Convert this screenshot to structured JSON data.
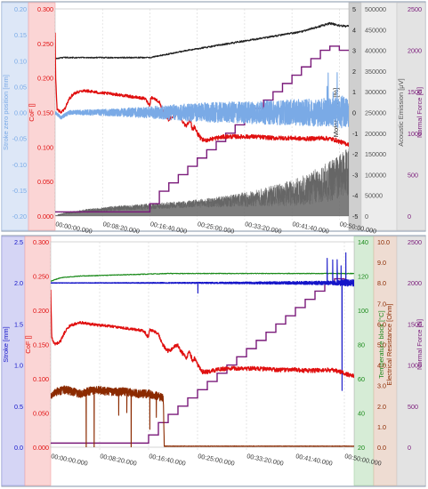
{
  "colors": {
    "stroke_zero": "#7aaae6",
    "cof": "#e01010",
    "motor": "#222222",
    "ae": "#666666",
    "force": "#7a1a7a",
    "stroke": "#1515c8",
    "temp": "#1a8a1a",
    "er": "#8b2a00"
  },
  "chart_data": [
    {
      "type": "line",
      "x_ticks": [
        "00:00:00.000",
        "00:08:20.000",
        "00:16:40.000",
        "00:25:00.000",
        "00:33:20.000",
        "00:41:40.000",
        "00:50:00.000"
      ],
      "x_seconds": [
        0,
        500,
        1000,
        1500,
        2000,
        2500,
        3000
      ],
      "axes": [
        {
          "label": "Stroke zero position [mm]",
          "ylim": [
            -0.2,
            0.2
          ],
          "ticks": [
            "-0.20",
            "-0.15",
            "-0.10",
            "-0.05",
            "0.00",
            "0.05",
            "0.10",
            "0.15",
            "0.20"
          ]
        },
        {
          "label": "CoF []",
          "ylim": [
            0,
            0.3
          ],
          "ticks": [
            "0.000",
            "0.050",
            "0.100",
            "0.150",
            "0.200",
            "0.250",
            "0.300"
          ]
        },
        {
          "label": "Motor Power [%]",
          "ylim": [
            -5,
            5
          ],
          "ticks": [
            "-5",
            "-4",
            "-3",
            "-2",
            "-1",
            "0",
            "1",
            "2",
            "3",
            "4",
            "5"
          ]
        },
        {
          "label": "Acoustic Emission [μV]",
          "ylim": [
            0,
            500000
          ],
          "ticks": [
            "0",
            "50000",
            "100000",
            "150000",
            "200000",
            "250000",
            "300000",
            "350000",
            "400000",
            "450000",
            "500000"
          ]
        },
        {
          "label": "Normal Force [N]",
          "ylim": [
            0,
            2500
          ],
          "ticks": [
            "0",
            "500",
            "1000",
            "1500",
            "2000",
            "2500"
          ]
        }
      ],
      "series": [
        {
          "axis": 0,
          "x": [
            0,
            60,
            150,
            300,
            500,
            700,
            900,
            1100,
            1300,
            1500,
            1800,
            2100,
            2400,
            2700,
            2900,
            3000,
            3100
          ],
          "y": [
            0.0,
            -0.01,
            0.0,
            0.0,
            0.0,
            0.0,
            0.0,
            0.0,
            0.0,
            0.0,
            0.0,
            0.0,
            0.0,
            0.0,
            0.0,
            0.0,
            0.0
          ],
          "noise": [
            0.003,
            0.003,
            0.004,
            0.005,
            0.006,
            0.008,
            0.01,
            0.013,
            0.016,
            0.018,
            0.02,
            0.022,
            0.024,
            0.026,
            0.028,
            0.03,
            0.03
          ]
        },
        {
          "axis": 1,
          "x": [
            0,
            5,
            20,
            60,
            100,
            150,
            200,
            300,
            400,
            500,
            600,
            700,
            800,
            950,
            1000,
            1010,
            1050,
            1100,
            1150,
            1200,
            1250,
            1300,
            1330,
            1360,
            1380,
            1420,
            1450,
            1470,
            1500,
            1550,
            1600,
            1700,
            1800,
            1900,
            2000,
            2100,
            2200,
            2300,
            2400,
            2500,
            2600,
            2700,
            2800,
            2900,
            2960,
            3000,
            3060,
            3100
          ],
          "y": [
            0.265,
            0.2,
            0.155,
            0.15,
            0.155,
            0.17,
            0.178,
            0.182,
            0.18,
            0.178,
            0.177,
            0.175,
            0.173,
            0.17,
            0.16,
            0.172,
            0.17,
            0.165,
            0.148,
            0.14,
            0.145,
            0.15,
            0.14,
            0.135,
            0.13,
            0.14,
            0.125,
            0.13,
            0.12,
            0.11,
            0.11,
            0.113,
            0.115,
            0.115,
            0.115,
            0.115,
            0.114,
            0.113,
            0.113,
            0.113,
            0.112,
            0.112,
            0.113,
            0.112,
            0.11,
            0.108,
            0.105,
            0.104
          ],
          "noise": [
            0.002,
            0.002,
            0.002,
            0.002,
            0.002,
            0.002,
            0.002,
            0.002,
            0.002,
            0.002,
            0.002,
            0.002,
            0.002,
            0.002,
            0.002,
            0.002,
            0.002,
            0.002,
            0.003,
            0.003,
            0.003,
            0.003,
            0.003,
            0.003,
            0.003,
            0.003,
            0.003,
            0.003,
            0.003,
            0.003,
            0.003,
            0.003,
            0.003,
            0.003,
            0.003,
            0.003,
            0.003,
            0.003,
            0.003,
            0.003,
            0.003,
            0.003,
            0.003,
            0.003,
            0.003,
            0.003,
            0.003,
            0.003
          ]
        },
        {
          "axis": 2,
          "x": [
            0,
            100,
            1000,
            1400,
            1800,
            2200,
            2600,
            2900,
            3000,
            3100
          ],
          "y": [
            2.6,
            2.65,
            2.65,
            3.0,
            3.3,
            3.6,
            3.9,
            4.3,
            4.2,
            4.15
          ],
          "noise": [
            0.03,
            0.03,
            0.03,
            0.03,
            0.04,
            0.04,
            0.04,
            0.05,
            0.05,
            0.05
          ]
        },
        {
          "axis": 3,
          "x": [
            0,
            100,
            300,
            600,
            900,
            1200,
            1500,
            1800,
            2100,
            2400,
            2600,
            2800,
            3000,
            3100
          ],
          "y": [
            0,
            6000,
            12000,
            18000,
            22000,
            26000,
            30000,
            35000,
            42000,
            52000,
            60000,
            75000,
            95000,
            105000
          ],
          "noise": [
            2000,
            2000,
            4000,
            6000,
            7000,
            8000,
            10000,
            14000,
            20000,
            28000,
            36000,
            45000,
            55000,
            60000
          ]
        },
        {
          "axis": 4,
          "x": [
            0,
            95,
            200,
            300,
            400,
            500,
            600,
            700,
            800,
            900,
            1000,
            1100,
            1200,
            1300,
            1400,
            1500,
            1600,
            1700,
            1800,
            1900,
            2000,
            2100,
            2200,
            2300,
            2400,
            2500,
            2600,
            2700,
            2800,
            2900,
            3000
          ],
          "y": [
            50,
            50,
            50,
            50,
            50,
            50,
            50,
            50,
            50,
            50,
            150,
            300,
            400,
            500,
            600,
            700,
            800,
            900,
            1000,
            1100,
            1200,
            1300,
            1400,
            1500,
            1600,
            1700,
            1800,
            1900,
            2000,
            2050,
            2000
          ],
          "steps": true
        }
      ]
    },
    {
      "type": "line",
      "x_ticks": [
        "00:00:00.000",
        "00:08:20.000",
        "00:16:40.000",
        "00:25:00.000",
        "00:33:20.000",
        "00:41:40.000",
        "00:50:00.000"
      ],
      "x_seconds": [
        0,
        500,
        1000,
        1500,
        2000,
        2500,
        3000
      ],
      "axes": [
        {
          "label": "Stroke [mm]",
          "ylim": [
            0,
            2.5
          ],
          "ticks": [
            "0.0",
            "0.5",
            "1.0",
            "1.5",
            "2.0",
            "2.5"
          ]
        },
        {
          "label": "CoF []",
          "ylim": [
            0,
            0.3
          ],
          "ticks": [
            "0.000",
            "0.050",
            "0.100",
            "0.150",
            "0.200",
            "0.250",
            "0.300"
          ]
        },
        {
          "label": "Temperature block [°C]",
          "ylim": [
            20,
            140
          ],
          "ticks": [
            "20",
            "40",
            "60",
            "80",
            "100",
            "120",
            "140"
          ]
        },
        {
          "label": "Electrical Resistance [Ohm]",
          "ylim": [
            0,
            10
          ],
          "ticks": [
            "0.0",
            "1.0",
            "2.0",
            "3.0",
            "4.0",
            "5.0",
            "6.0",
            "7.0",
            "8.0",
            "9.0",
            "10.0"
          ]
        },
        {
          "label": "Normal Force [N]",
          "ylim": [
            0,
            2500
          ],
          "ticks": [
            "0",
            "500",
            "1000",
            "1500",
            "2000",
            "2500"
          ]
        }
      ],
      "series": [
        {
          "axis": 0,
          "x": [
            0,
            500,
            1000,
            1500,
            2000,
            2500,
            2900,
            3000,
            3050,
            3100
          ],
          "y": [
            2.0,
            2.0,
            2.0,
            2.0,
            2.0,
            2.0,
            2.0,
            2.0,
            2.0,
            2.0
          ],
          "noise": [
            0.003,
            0.004,
            0.006,
            0.008,
            0.012,
            0.018,
            0.025,
            0.04,
            0.04,
            0.04
          ]
        },
        {
          "axis": 1,
          "x": [
            0,
            10,
            40,
            100,
            150,
            200,
            300,
            400,
            500,
            600,
            700,
            800,
            950,
            1000,
            1010,
            1050,
            1100,
            1150,
            1200,
            1250,
            1300,
            1330,
            1360,
            1380,
            1420,
            1450,
            1470,
            1500,
            1550,
            1600,
            1700,
            1800,
            1900,
            2000,
            2100,
            2200,
            2300,
            2400,
            2500,
            2600,
            2700,
            2800,
            2900,
            2960,
            3000,
            3060,
            3100
          ],
          "y": [
            0.23,
            0.16,
            0.15,
            0.155,
            0.17,
            0.178,
            0.182,
            0.18,
            0.178,
            0.177,
            0.175,
            0.173,
            0.17,
            0.16,
            0.172,
            0.17,
            0.165,
            0.148,
            0.14,
            0.145,
            0.15,
            0.14,
            0.135,
            0.13,
            0.14,
            0.125,
            0.13,
            0.12,
            0.11,
            0.11,
            0.113,
            0.115,
            0.115,
            0.115,
            0.115,
            0.114,
            0.113,
            0.113,
            0.113,
            0.112,
            0.112,
            0.113,
            0.112,
            0.11,
            0.108,
            0.105,
            0.104
          ],
          "noise": [
            0.002,
            0.002,
            0.002,
            0.002,
            0.002,
            0.002,
            0.002,
            0.002,
            0.002,
            0.002,
            0.002,
            0.002,
            0.002,
            0.002,
            0.002,
            0.002,
            0.002,
            0.003,
            0.003,
            0.003,
            0.003,
            0.003,
            0.003,
            0.003,
            0.003,
            0.003,
            0.003,
            0.003,
            0.003,
            0.003,
            0.003,
            0.003,
            0.003,
            0.003,
            0.003,
            0.003,
            0.003,
            0.003,
            0.003,
            0.003,
            0.003,
            0.003,
            0.003,
            0.003,
            0.003,
            0.003,
            0.003
          ]
        },
        {
          "axis": 2,
          "x": [
            0,
            100,
            300,
            600,
            900,
            1200,
            1500,
            1800,
            2100,
            2400,
            2700,
            3000,
            3100
          ],
          "y": [
            117,
            119,
            120,
            120.5,
            121,
            121.5,
            121.5,
            121.5,
            121.5,
            121.5,
            121.5,
            121.5,
            121.5
          ],
          "noise": [
            0.2,
            0.2,
            0.2,
            0.2,
            0.2,
            0.2,
            0.2,
            0.2,
            0.2,
            0.2,
            0.2,
            0.2,
            0.2
          ]
        },
        {
          "axis": 3,
          "x": [
            0,
            20,
            60,
            150,
            300,
            450,
            600,
            750,
            900,
            1000,
            1080,
            1150,
            1160,
            1500,
            2000,
            2500,
            3000,
            3100
          ],
          "y": [
            2.5,
            2.6,
            2.7,
            2.8,
            2.6,
            2.8,
            2.7,
            2.7,
            2.6,
            2.6,
            2.5,
            2.4,
            0.05,
            0.05,
            0.05,
            0.05,
            0.05,
            0.05
          ],
          "noise": [
            0.2,
            0.2,
            0.2,
            0.2,
            0.2,
            0.2,
            0.2,
            0.2,
            0.2,
            0.2,
            0.2,
            0.2,
            0.01,
            0.01,
            0.01,
            0.01,
            0.01,
            0.01
          ]
        },
        {
          "axis": 4,
          "x": [
            0,
            95,
            200,
            300,
            400,
            500,
            600,
            700,
            800,
            900,
            1000,
            1100,
            1200,
            1300,
            1400,
            1500,
            1600,
            1700,
            1800,
            1900,
            2000,
            2100,
            2200,
            2300,
            2400,
            2500,
            2600,
            2700,
            2800,
            2900,
            3000
          ],
          "y": [
            50,
            50,
            50,
            50,
            50,
            50,
            50,
            50,
            50,
            50,
            150,
            300,
            400,
            500,
            600,
            700,
            800,
            900,
            1000,
            1100,
            1200,
            1300,
            1400,
            1500,
            1600,
            1700,
            1800,
            1900,
            2000,
            2050,
            2000
          ],
          "steps": true
        }
      ]
    }
  ]
}
